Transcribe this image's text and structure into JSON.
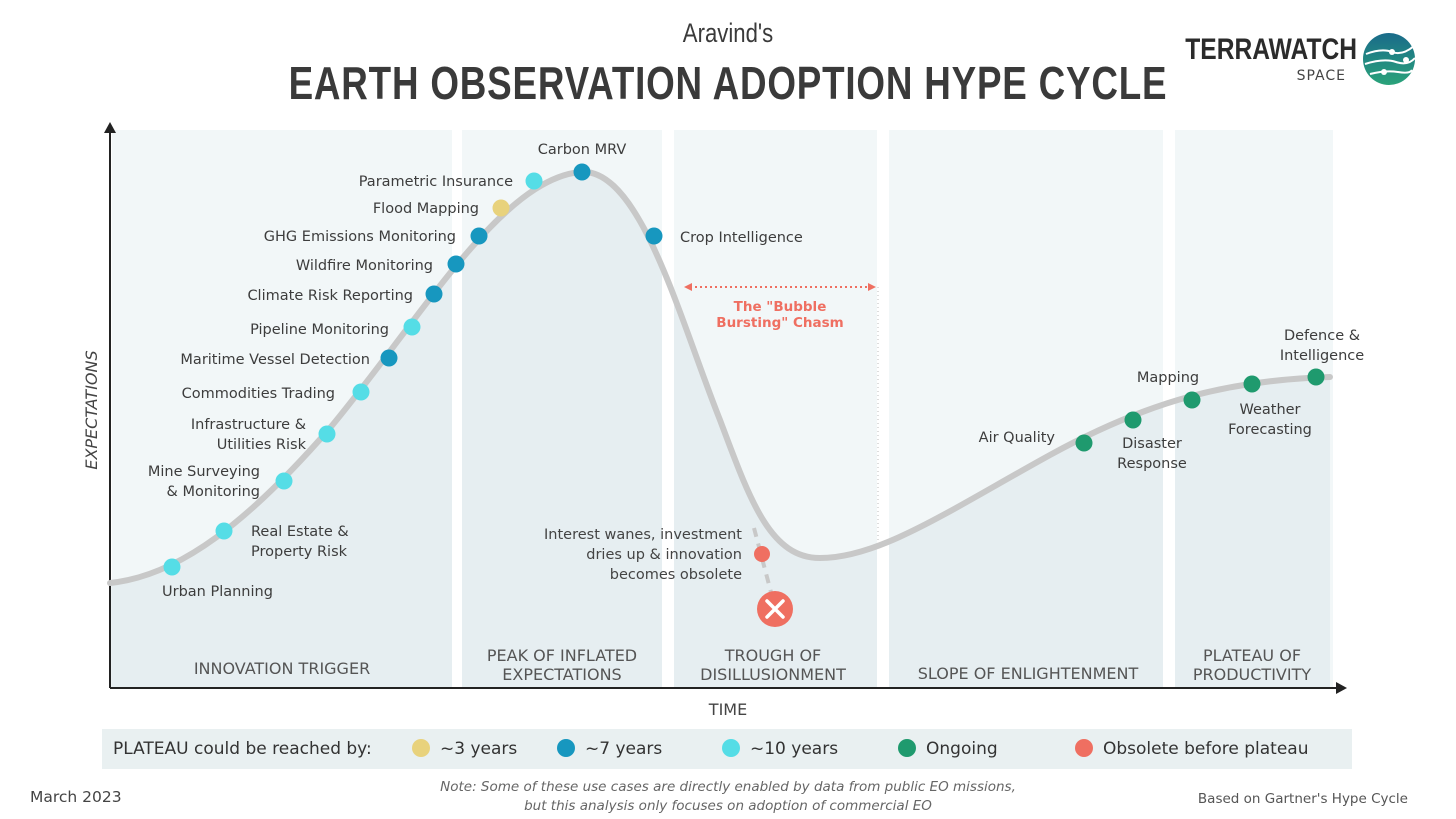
{
  "header": {
    "subtitle": "Aravind's",
    "title": "EARTH OBSERVATION ADOPTION HYPE CYCLE",
    "brand_name": "TERRAWATCH",
    "brand_sub": "SPACE"
  },
  "colors": {
    "three_years": "#e8d27c",
    "seven_years": "#1797bf",
    "ten_years": "#55dde6",
    "ongoing": "#1f9a6e",
    "obsolete": "#ef6f61",
    "curve": "#c8c8c8",
    "phase_fill": "#eef4f5"
  },
  "axes": {
    "y_label": "EXPECTATIONS",
    "x_label": "TIME"
  },
  "phases": [
    {
      "lines": [
        "INNOVATION TRIGGER"
      ]
    },
    {
      "lines": [
        "PEAK OF INFLATED",
        "EXPECTATIONS"
      ]
    },
    {
      "lines": [
        "TROUGH OF",
        "DISILLUSIONMENT"
      ]
    },
    {
      "lines": [
        "SLOPE OF ENLIGHTENMENT"
      ]
    },
    {
      "lines": [
        "PLATEAU OF",
        "PRODUCTIVITY"
      ]
    }
  ],
  "use_cases": [
    {
      "name": "Urban Planning",
      "lines": [
        "Urban Planning"
      ],
      "category": "ten_years"
    },
    {
      "name": "Real Estate & Property Risk",
      "lines": [
        "Real Estate &",
        "Property Risk"
      ],
      "category": "ten_years"
    },
    {
      "name": "Mine Surveying & Monitoring",
      "lines": [
        "Mine Surveying",
        "& Monitoring"
      ],
      "category": "ten_years"
    },
    {
      "name": "Infrastructure & Utilities Risk",
      "lines": [
        "Infrastructure &",
        "Utilities Risk"
      ],
      "category": "ten_years"
    },
    {
      "name": "Commodities Trading",
      "lines": [
        "Commodities Trading"
      ],
      "category": "ten_years"
    },
    {
      "name": "Maritime Vessel Detection",
      "lines": [
        "Maritime Vessel Detection"
      ],
      "category": "seven_years"
    },
    {
      "name": "Pipeline Monitoring",
      "lines": [
        "Pipeline Monitoring"
      ],
      "category": "ten_years"
    },
    {
      "name": "Climate Risk Reporting",
      "lines": [
        "Climate Risk Reporting"
      ],
      "category": "seven_years"
    },
    {
      "name": "Wildfire Monitoring",
      "lines": [
        "Wildfire Monitoring"
      ],
      "category": "seven_years"
    },
    {
      "name": "GHG Emissions Monitoring",
      "lines": [
        "GHG Emissions Monitoring"
      ],
      "category": "seven_years"
    },
    {
      "name": "Flood Mapping",
      "lines": [
        "Flood Mapping"
      ],
      "category": "three_years"
    },
    {
      "name": "Parametric Insurance",
      "lines": [
        "Parametric Insurance"
      ],
      "category": "ten_years"
    },
    {
      "name": "Carbon MRV",
      "lines": [
        "Carbon MRV"
      ],
      "category": "seven_years"
    },
    {
      "name": "Crop Intelligence",
      "lines": [
        "Crop Intelligence"
      ],
      "category": "seven_years"
    },
    {
      "name": "Air Quality",
      "lines": [
        "Air Quality"
      ],
      "category": "ongoing"
    },
    {
      "name": "Disaster Response",
      "lines": [
        "Disaster",
        "Response"
      ],
      "category": "ongoing"
    },
    {
      "name": "Mapping",
      "lines": [
        "Mapping"
      ],
      "category": "ongoing"
    },
    {
      "name": "Weather Forecasting",
      "lines": [
        "Weather",
        "Forecasting"
      ],
      "category": "ongoing"
    },
    {
      "name": "Defence & Intelligence",
      "lines": [
        "Defence &",
        "Intelligence"
      ],
      "category": "ongoing"
    }
  ],
  "chasm": {
    "lines": [
      "The \"Bubble",
      "Bursting\" Chasm"
    ]
  },
  "obsolete_note": {
    "lines": [
      "Interest wanes, investment",
      "dries up & innovation",
      "becomes obsolete"
    ]
  },
  "legend": {
    "prefix": "PLATEAU could be reached by:",
    "items": [
      {
        "label": "~3 years",
        "category": "three_years"
      },
      {
        "label": "~7 years",
        "category": "seven_years"
      },
      {
        "label": "~10 years",
        "category": "ten_years"
      },
      {
        "label": "Ongoing",
        "category": "ongoing"
      },
      {
        "label": "Obsolete before plateau",
        "category": "obsolete"
      }
    ]
  },
  "footer": {
    "note_line1": "Note: Some of these use cases are directly enabled by data from public EO missions,",
    "note_line2": "but this analysis only focuses on adoption of commercial EO",
    "date": "March 2023",
    "based_on": "Based on Gartner's Hype Cycle"
  }
}
